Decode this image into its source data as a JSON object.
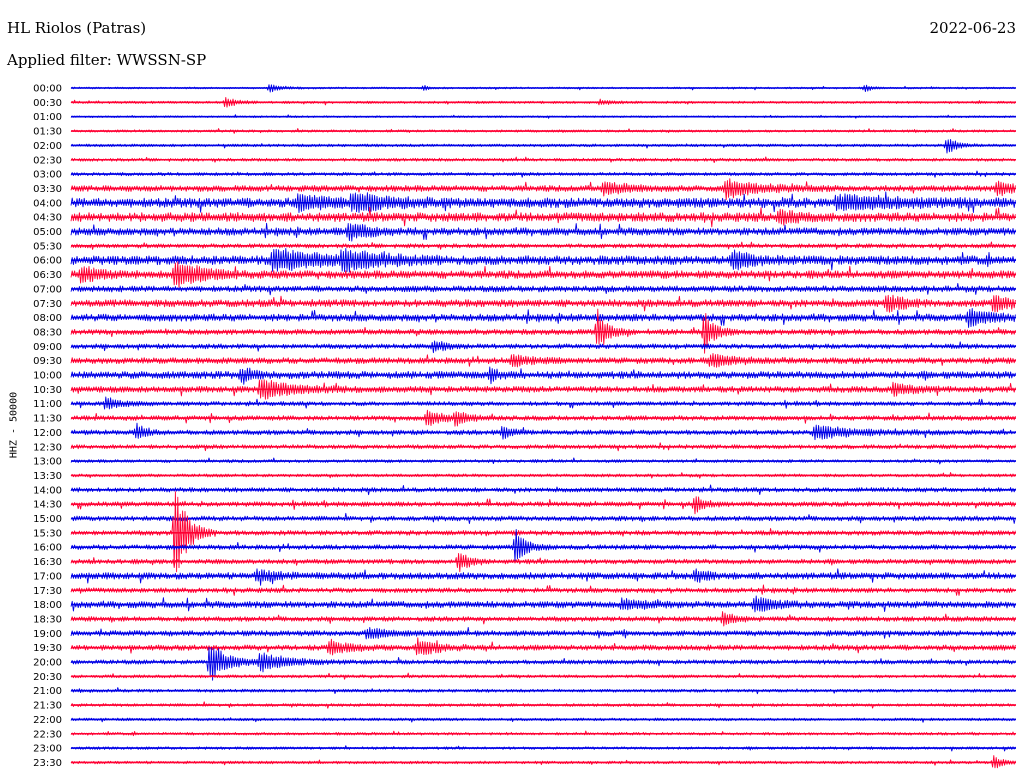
{
  "header": {
    "station": "HL Riolos (Patras)",
    "date": "2022-06-23",
    "filter": "Applied filter: WWSSN-SP"
  },
  "colors": {
    "trace_a": "#0000e6",
    "trace_b": "#ff0033"
  },
  "chart_data": {
    "type": "line",
    "title": "HL Riolos (Patras)",
    "ylabel": "HHZ - 50000",
    "xlabel": "",
    "row_labels": [
      "00:00",
      "00:30",
      "01:00",
      "01:30",
      "02:00",
      "02:30",
      "03:00",
      "03:30",
      "04:00",
      "04:30",
      "05:00",
      "05:30",
      "06:00",
      "06:30",
      "07:00",
      "07:30",
      "08:00",
      "08:30",
      "09:00",
      "09:30",
      "10:00",
      "10:30",
      "11:00",
      "11:30",
      "12:00",
      "12:30",
      "13:00",
      "13:30",
      "14:00",
      "14:30",
      "15:00",
      "15:30",
      "16:00",
      "16:30",
      "17:00",
      "17:30",
      "18:00",
      "18:30",
      "19:00",
      "19:30",
      "20:00",
      "20:30",
      "21:00",
      "21:30",
      "22:00",
      "22:30",
      "23:00",
      "23:30"
    ],
    "row_noise": [
      0.6,
      0.8,
      0.6,
      0.8,
      0.9,
      1.0,
      1.1,
      2.0,
      3.2,
      3.0,
      2.5,
      1.4,
      3.0,
      2.6,
      2.0,
      2.4,
      2.4,
      1.8,
      1.6,
      2.0,
      2.4,
      2.0,
      1.4,
      1.6,
      1.6,
      1.4,
      1.0,
      1.0,
      1.5,
      1.6,
      1.6,
      1.6,
      1.6,
      1.6,
      2.2,
      1.6,
      2.2,
      1.6,
      1.8,
      1.8,
      1.4,
      1.0,
      1.0,
      1.0,
      0.9,
      0.9,
      0.9,
      0.9
    ],
    "events": [
      {
        "row": "00:00",
        "t_min": 6.3,
        "amp": 4,
        "dur_min": 0.6
      },
      {
        "row": "00:00",
        "t_min": 11.2,
        "amp": 3,
        "dur_min": 0.2
      },
      {
        "row": "00:00",
        "t_min": 25.2,
        "amp": 4,
        "dur_min": 0.3
      },
      {
        "row": "00:30",
        "t_min": 4.9,
        "amp": 5,
        "dur_min": 0.6
      },
      {
        "row": "00:30",
        "t_min": 16.8,
        "amp": 3,
        "dur_min": 0.6
      },
      {
        "row": "02:00",
        "t_min": 27.8,
        "amp": 9,
        "dur_min": 0.5
      },
      {
        "row": "03:30",
        "t_min": 16.9,
        "amp": 6,
        "dur_min": 1.2
      },
      {
        "row": "03:30",
        "t_min": 20.8,
        "amp": 9,
        "dur_min": 1.6
      },
      {
        "row": "03:30",
        "t_min": 29.4,
        "amp": 6,
        "dur_min": 1.0
      },
      {
        "row": "04:00",
        "t_min": 7.2,
        "amp": 8,
        "dur_min": 1.2
      },
      {
        "row": "04:00",
        "t_min": 8.9,
        "amp": 8,
        "dur_min": 2.0
      },
      {
        "row": "04:00",
        "t_min": 24.3,
        "amp": 6,
        "dur_min": 3.0
      },
      {
        "row": "04:30",
        "t_min": 22.5,
        "amp": 7,
        "dur_min": 0.8
      },
      {
        "row": "05:00",
        "t_min": 8.8,
        "amp": 8,
        "dur_min": 1.0
      },
      {
        "row": "06:00",
        "t_min": 6.4,
        "amp": 10,
        "dur_min": 2.5
      },
      {
        "row": "06:00",
        "t_min": 8.6,
        "amp": 9,
        "dur_min": 1.8
      },
      {
        "row": "06:00",
        "t_min": 21.0,
        "amp": 9,
        "dur_min": 1.0
      },
      {
        "row": "06:30",
        "t_min": 3.3,
        "amp": 14,
        "dur_min": 1.2
      },
      {
        "row": "06:30",
        "t_min": 0.3,
        "amp": 7,
        "dur_min": 1.0
      },
      {
        "row": "07:30",
        "t_min": 25.9,
        "amp": 9,
        "dur_min": 0.8
      },
      {
        "row": "07:30",
        "t_min": 29.3,
        "amp": 8,
        "dur_min": 0.8
      },
      {
        "row": "08:00",
        "t_min": 28.5,
        "amp": 8,
        "dur_min": 1.2
      },
      {
        "row": "08:30",
        "t_min": 16.7,
        "amp": 22,
        "dur_min": 0.5
      },
      {
        "row": "08:30",
        "t_min": 20.1,
        "amp": 20,
        "dur_min": 0.5
      },
      {
        "row": "09:00",
        "t_min": 11.5,
        "amp": 6,
        "dur_min": 0.6
      },
      {
        "row": "09:30",
        "t_min": 14.0,
        "amp": 5,
        "dur_min": 1.0
      },
      {
        "row": "09:30",
        "t_min": 20.3,
        "amp": 5,
        "dur_min": 1.5
      },
      {
        "row": "10:00",
        "t_min": 5.4,
        "amp": 6,
        "dur_min": 0.8
      },
      {
        "row": "10:00",
        "t_min": 13.3,
        "amp": 7,
        "dur_min": 0.4
      },
      {
        "row": "10:30",
        "t_min": 6.0,
        "amp": 9,
        "dur_min": 1.8
      },
      {
        "row": "10:30",
        "t_min": 26.1,
        "amp": 6,
        "dur_min": 1.0
      },
      {
        "row": "11:00",
        "t_min": 1.1,
        "amp": 6,
        "dur_min": 0.8
      },
      {
        "row": "11:30",
        "t_min": 11.3,
        "amp": 8,
        "dur_min": 0.8
      },
      {
        "row": "11:30",
        "t_min": 12.2,
        "amp": 7,
        "dur_min": 0.6
      },
      {
        "row": "12:00",
        "t_min": 2.1,
        "amp": 8,
        "dur_min": 0.4
      },
      {
        "row": "12:00",
        "t_min": 13.7,
        "amp": 7,
        "dur_min": 0.4
      },
      {
        "row": "12:00",
        "t_min": 23.6,
        "amp": 7,
        "dur_min": 2.0
      },
      {
        "row": "14:30",
        "t_min": 19.8,
        "amp": 9,
        "dur_min": 0.5
      },
      {
        "row": "15:30",
        "t_min": 3.3,
        "amp": 50,
        "dur_min": 0.6
      },
      {
        "row": "16:00",
        "t_min": 14.1,
        "amp": 18,
        "dur_min": 0.5
      },
      {
        "row": "16:30",
        "t_min": 12.3,
        "amp": 11,
        "dur_min": 0.5
      },
      {
        "row": "17:00",
        "t_min": 5.9,
        "amp": 6,
        "dur_min": 1.0
      },
      {
        "row": "17:00",
        "t_min": 19.8,
        "amp": 6,
        "dur_min": 0.6
      },
      {
        "row": "18:00",
        "t_min": 21.7,
        "amp": 7,
        "dur_min": 1.0
      },
      {
        "row": "18:00",
        "t_min": 17.5,
        "amp": 5,
        "dur_min": 1.0
      },
      {
        "row": "18:30",
        "t_min": 20.7,
        "amp": 7,
        "dur_min": 0.6
      },
      {
        "row": "19:00",
        "t_min": 9.4,
        "amp": 5,
        "dur_min": 1.2
      },
      {
        "row": "19:30",
        "t_min": 8.2,
        "amp": 7,
        "dur_min": 1.0
      },
      {
        "row": "19:30",
        "t_min": 11.0,
        "amp": 8,
        "dur_min": 1.0
      },
      {
        "row": "20:00",
        "t_min": 4.4,
        "amp": 22,
        "dur_min": 0.8
      },
      {
        "row": "20:00",
        "t_min": 6.0,
        "amp": 9,
        "dur_min": 1.4
      },
      {
        "row": "23:30",
        "t_min": 29.3,
        "amp": 8,
        "dur_min": 0.4
      }
    ],
    "rows_per_hour": 2,
    "minutes_per_row": 30,
    "grid": false,
    "legend": "none"
  }
}
